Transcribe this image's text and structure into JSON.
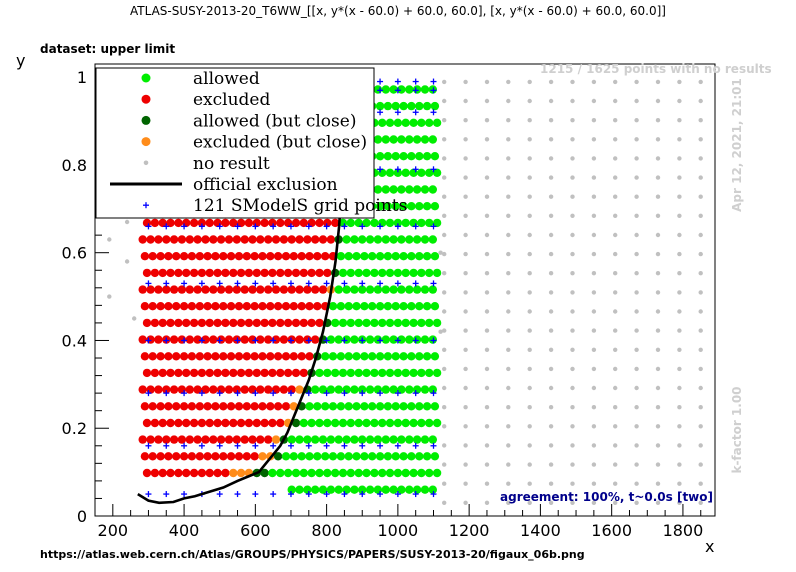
{
  "header": {
    "title": "ATLAS-SUSY-2013-20_T6WW_[[x, y*(x - 60.0) + 60.0, 60.0], [x, y*(x - 60.0) + 60.0, 60.0]]",
    "dataset": "dataset: upper limit",
    "source_url": "https://atlas.web.cern.ch/Atlas/GROUPS/PHYSICS/PAPERS/SUSY-2013-20/figaux_06b.png"
  },
  "annotations": {
    "no_result_count": "1215 / 1625 points with no results",
    "date": "Apr 12, 2021, 21:01",
    "kfactor": "k-factor 1.00",
    "agreement": "agreement: 100%, t~0.0s [two]"
  },
  "colors": {
    "allowed": "#00ee00",
    "excluded": "#ee0000",
    "allowed_close": "#006400",
    "excluded_close": "#ff8c1a",
    "no_result": "#c0c0c0",
    "official_exclusion": "#000000",
    "grid_points": "#0000ff",
    "faded_line": "#b0b0b0"
  },
  "chart_data": {
    "type": "scatter",
    "xlabel": "x",
    "ylabel": "y",
    "xlim": [
      150,
      1890
    ],
    "ylim": [
      0,
      1.03
    ],
    "x_ticks": [
      200,
      400,
      600,
      800,
      1000,
      1200,
      1400,
      1600,
      1800
    ],
    "y_ticks": [
      0,
      0.2,
      0.4,
      0.6,
      0.8,
      1
    ],
    "legend_position": "top-left",
    "legend": [
      {
        "label": "allowed",
        "marker": "dot",
        "color": "#00ee00"
      },
      {
        "label": "excluded",
        "marker": "dot",
        "color": "#ee0000"
      },
      {
        "label": "allowed (but close)",
        "marker": "dot",
        "color": "#006400"
      },
      {
        "label": "excluded (but close)",
        "marker": "dot",
        "color": "#ff8c1a"
      },
      {
        "label": "no result",
        "marker": "small-dot",
        "color": "#c0c0c0"
      },
      {
        "label": "official exclusion",
        "marker": "line",
        "color": "#000000"
      },
      {
        "label": "121 SModelS grid points",
        "marker": "cross",
        "color": "#0000ff"
      }
    ],
    "official_exclusion": [
      [
        270,
        0.05
      ],
      [
        300,
        0.035
      ],
      [
        330,
        0.03
      ],
      [
        370,
        0.032
      ],
      [
        400,
        0.04
      ],
      [
        430,
        0.045
      ],
      [
        470,
        0.055
      ],
      [
        510,
        0.065
      ],
      [
        550,
        0.08
      ],
      [
        580,
        0.09
      ],
      [
        610,
        0.1
      ],
      [
        630,
        0.12
      ],
      [
        650,
        0.14
      ],
      [
        670,
        0.16
      ],
      [
        690,
        0.19
      ],
      [
        710,
        0.23
      ],
      [
        730,
        0.27
      ],
      [
        750,
        0.31
      ],
      [
        770,
        0.36
      ],
      [
        790,
        0.42
      ],
      [
        810,
        0.5
      ],
      [
        825,
        0.58
      ],
      [
        835,
        0.66
      ],
      [
        840,
        0.72
      ]
    ],
    "faded_exclusion": [
      [
        270,
        0.96
      ],
      [
        300,
        0.98
      ],
      [
        350,
        0.99
      ],
      [
        420,
        0.995
      ],
      [
        500,
        0.997
      ],
      [
        600,
        0.997
      ],
      [
        680,
        0.99
      ],
      [
        730,
        0.96
      ],
      [
        760,
        0.92
      ],
      [
        790,
        0.88
      ],
      [
        810,
        0.83
      ],
      [
        825,
        0.78
      ],
      [
        835,
        0.73
      ]
    ],
    "no_result_grid": {
      "x_start": 1130,
      "x_end": 1860,
      "x_step": 60,
      "y_start": 0.03,
      "y_end": 0.99,
      "y_step": 0.0436
    },
    "grid_points_columns_x": [
      300,
      350,
      400,
      450,
      500,
      550,
      600,
      650,
      700,
      750,
      800,
      850,
      900,
      950,
      1000,
      1050,
      1100
    ]
  }
}
